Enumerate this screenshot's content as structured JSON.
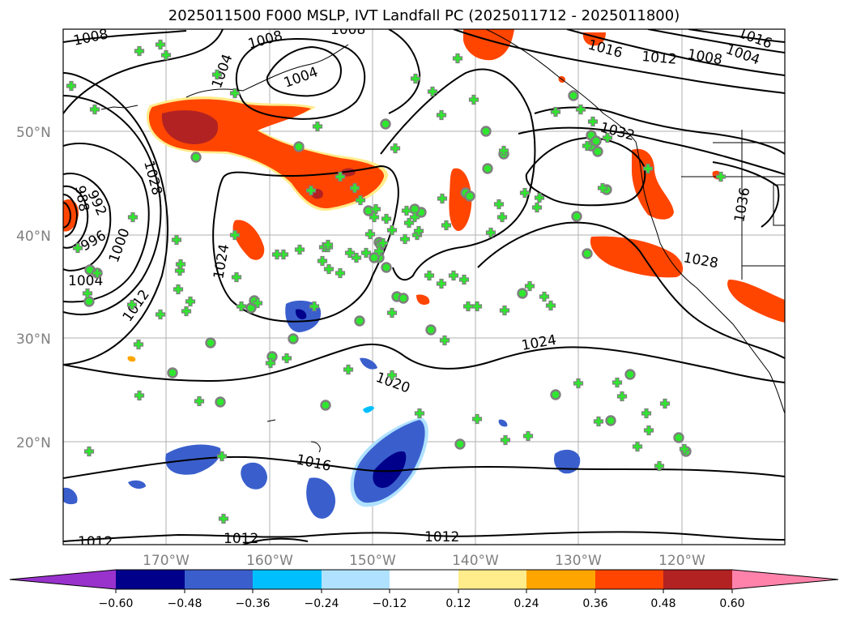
{
  "title": "2025011500 F000 MSLP, IVT Landfall PC (2025011712 - 2025011800)",
  "map": {
    "lat_labels": [
      "50°N",
      "40°N",
      "30°N",
      "20°N"
    ],
    "lon_labels": [
      "170°W",
      "160°W",
      "150°W",
      "140°W",
      "130°W",
      "120°W"
    ],
    "contour_labels": [
      "1008",
      "1008",
      "1008",
      "1004",
      "1004",
      "1016",
      "1012",
      "1008",
      "1004",
      "1016",
      "1032",
      "1036",
      "1028",
      "988",
      "992",
      "996",
      "1000",
      "1004",
      "1012",
      "1024",
      "1024",
      "1020",
      "1016",
      "1012",
      "1012",
      "1012",
      "1028"
    ]
  },
  "colorbar": {
    "labels": [
      "−0.60",
      "−0.48",
      "−0.36",
      "−0.24",
      "−0.12",
      "0.12",
      "0.24",
      "0.36",
      "0.48",
      "0.60"
    ],
    "colors": [
      "#9932cc",
      "#00008b",
      "#3a5fcd",
      "#00bfff",
      "#b0e2ff",
      "#ffffff",
      "#ffec8b",
      "#ffa500",
      "#ff4500",
      "#b22222",
      "#ff82ab"
    ]
  },
  "colors": {
    "land_marker": "#2ee82e",
    "marker_outline": "#7f7f7f"
  }
}
